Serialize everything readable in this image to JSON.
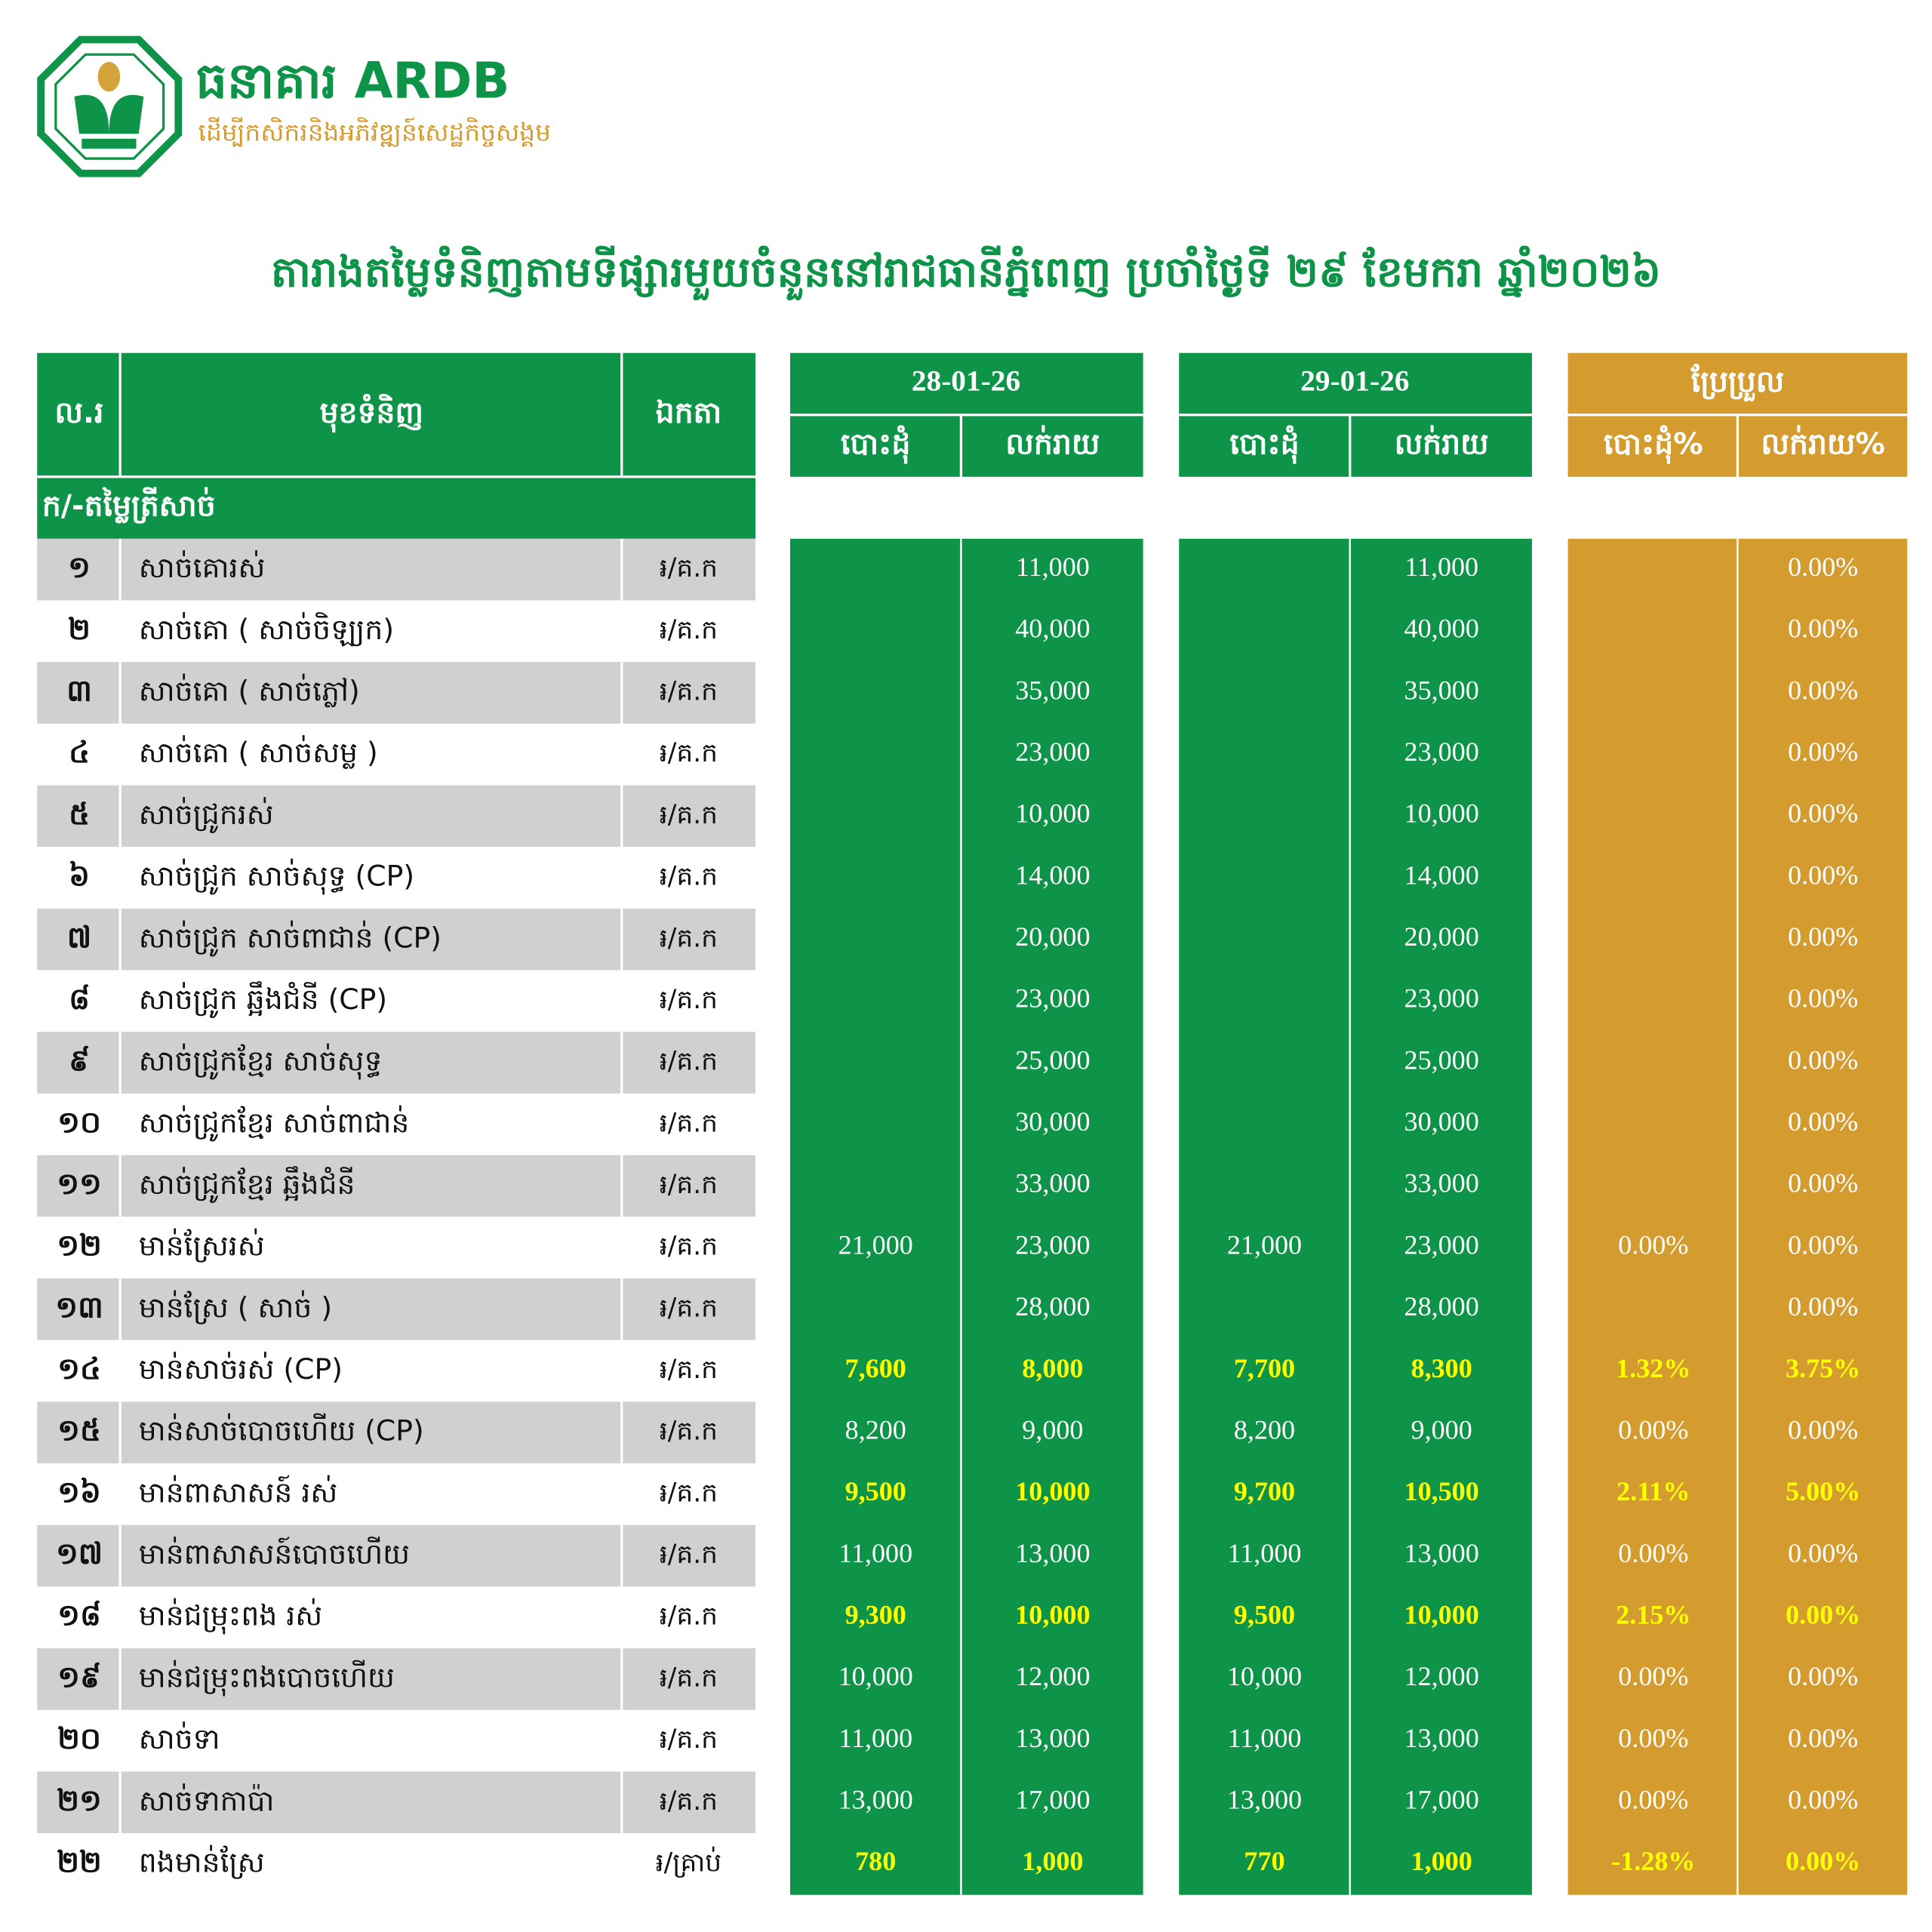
{
  "header": {
    "bank_name": "ធនាគារ ARDB",
    "slogan": "ដើម្បីកសិករនិងអភិវឌ្ឍន៍សេដ្ឋកិច្ចសង្គម"
  },
  "title": "តារាងតម្លៃទំនិញតាមទីផ្សារមួយចំនួននៅរាជធានីភ្នំពេញ ប្រចាំថ្ងៃទី ២៩ ខែមករា ឆ្នាំ២០២៦",
  "table": {
    "columns": {
      "no": "ល.រ",
      "item": "មុខទំនិញ",
      "unit": "ឯកតា",
      "date1": "28-01-26",
      "date2": "29-01-26",
      "change": "ប្រែប្រួល",
      "wholesale": "បោះដុំ",
      "retail": "លក់រាយ",
      "wholesale_pct": "បោះដុំ%",
      "retail_pct": "លក់រាយ%"
    },
    "section": "ក/-តម្លៃត្រីសាច់",
    "rows": [
      {
        "no": "១",
        "name": "សាច់គោរស់",
        "unit": "៛/គ.ក",
        "values": [
          null,
          "11,000",
          null,
          "11,000",
          null,
          "0.00%"
        ],
        "highlight": false
      },
      {
        "no": "២",
        "name": "សាច់គោ ( សាច់ចិឡ្យក)",
        "unit": "៛/គ.ក",
        "values": [
          null,
          "40,000",
          null,
          "40,000",
          null,
          "0.00%"
        ],
        "highlight": false
      },
      {
        "no": "៣",
        "name": "សាច់គោ ( សាច់ភ្លៅ)",
        "unit": "៛/គ.ក",
        "values": [
          null,
          "35,000",
          null,
          "35,000",
          null,
          "0.00%"
        ],
        "highlight": false
      },
      {
        "no": "៤",
        "name": "សាច់គោ ( សាច់សម្ល )",
        "unit": "៛/គ.ក",
        "values": [
          null,
          "23,000",
          null,
          "23,000",
          null,
          "0.00%"
        ],
        "highlight": false
      },
      {
        "no": "៥",
        "name": "សាច់ជ្រូករស់",
        "unit": "៛/គ.ក",
        "values": [
          null,
          "10,000",
          null,
          "10,000",
          null,
          "0.00%"
        ],
        "highlight": false
      },
      {
        "no": "៦",
        "name": "សាច់ជ្រូក សាច់សុទ្ធ (CP)",
        "unit": "៛/គ.ក",
        "values": [
          null,
          "14,000",
          null,
          "14,000",
          null,
          "0.00%"
        ],
        "highlight": false
      },
      {
        "no": "៧",
        "name": "សាច់ជ្រូក សាច់ពាជាន់ (CP)",
        "unit": "៛/គ.ក",
        "values": [
          null,
          "20,000",
          null,
          "20,000",
          null,
          "0.00%"
        ],
        "highlight": false
      },
      {
        "no": "៨",
        "name": "សាច់ជ្រូក ឆ្អឹងជំនី (CP)",
        "unit": "៛/គ.ក",
        "values": [
          null,
          "23,000",
          null,
          "23,000",
          null,
          "0.00%"
        ],
        "highlight": false
      },
      {
        "no": "៩",
        "name": "សាច់ជ្រូកខ្មែរ សាច់សុទ្ធ",
        "unit": "៛/គ.ក",
        "values": [
          null,
          "25,000",
          null,
          "25,000",
          null,
          "0.00%"
        ],
        "highlight": false
      },
      {
        "no": "១០",
        "name": "សាច់ជ្រូកខ្មែរ សាច់ពាជាន់",
        "unit": "៛/គ.ក",
        "values": [
          null,
          "30,000",
          null,
          "30,000",
          null,
          "0.00%"
        ],
        "highlight": false
      },
      {
        "no": "១១",
        "name": "សាច់ជ្រូកខ្មែរ ឆ្អឹងជំនី",
        "unit": "៛/គ.ក",
        "values": [
          null,
          "33,000",
          null,
          "33,000",
          null,
          "0.00%"
        ],
        "highlight": false
      },
      {
        "no": "១២",
        "name": "មាន់ស្រែរស់",
        "unit": "៛/គ.ក",
        "values": [
          "21,000",
          "23,000",
          "21,000",
          "23,000",
          "0.00%",
          "0.00%"
        ],
        "highlight": false
      },
      {
        "no": "១៣",
        "name": "មាន់ស្រែ ( សាច់ )",
        "unit": "៛/គ.ក",
        "values": [
          null,
          "28,000",
          null,
          "28,000",
          null,
          "0.00%"
        ],
        "highlight": false
      },
      {
        "no": "១៤",
        "name": "មាន់សាច់រស់ (CP)",
        "unit": "៛/គ.ក",
        "values": [
          "7,600",
          "8,000",
          "7,700",
          "8,300",
          "1.32%",
          "3.75%"
        ],
        "highlight": true
      },
      {
        "no": "១៥",
        "name": "មាន់សាច់បោចហើយ (CP)",
        "unit": "៛/គ.ក",
        "values": [
          "8,200",
          "9,000",
          "8,200",
          "9,000",
          "0.00%",
          "0.00%"
        ],
        "highlight": false
      },
      {
        "no": "១៦",
        "name": "មាន់ពាសាសន៍ រស់",
        "unit": "៛/គ.ក",
        "values": [
          "9,500",
          "10,000",
          "9,700",
          "10,500",
          "2.11%",
          "5.00%"
        ],
        "highlight": true
      },
      {
        "no": "១៧",
        "name": "មាន់ពាសាសន៍បោចហើយ",
        "unit": "៛/គ.ក",
        "values": [
          "11,000",
          "13,000",
          "11,000",
          "13,000",
          "0.00%",
          "0.00%"
        ],
        "highlight": false
      },
      {
        "no": "១៨",
        "name": "មាន់ជម្រុះពង រស់",
        "unit": "៛/គ.ក",
        "values": [
          "9,300",
          "10,000",
          "9,500",
          "10,000",
          "2.15%",
          "0.00%"
        ],
        "highlight": true
      },
      {
        "no": "១៩",
        "name": "មាន់ជម្រុះពងបោចហើយ",
        "unit": "៛/គ.ក",
        "values": [
          "10,000",
          "12,000",
          "10,000",
          "12,000",
          "0.00%",
          "0.00%"
        ],
        "highlight": false
      },
      {
        "no": "២០",
        "name": "សាច់ទា",
        "unit": "៛/គ.ក",
        "values": [
          "11,000",
          "13,000",
          "11,000",
          "13,000",
          "0.00%",
          "0.00%"
        ],
        "highlight": false
      },
      {
        "no": "២១",
        "name": "សាច់ទាកាប៉ា",
        "unit": "៛/គ.ក",
        "values": [
          "13,000",
          "17,000",
          "13,000",
          "17,000",
          "0.00%",
          "0.00%"
        ],
        "highlight": false
      },
      {
        "no": "២២",
        "name": "ពងមាន់ស្រែ",
        "unit": "៛/គ្រាប់",
        "values": [
          "780",
          "1,000",
          "770",
          "1,000",
          "-1.28%",
          "0.00%"
        ],
        "highlight": true
      }
    ]
  }
}
